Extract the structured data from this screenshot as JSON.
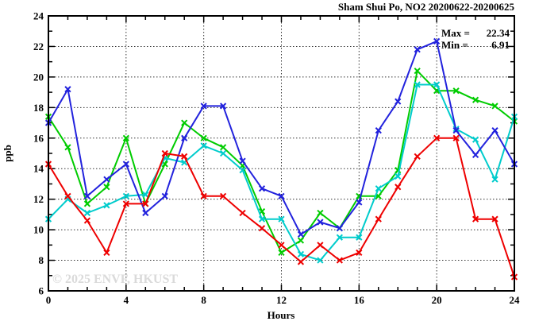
{
  "title": "Sham Shui Po, NO2 20200622-20200625",
  "watermark": "© 2025 ENVF, HKUST",
  "legend": {
    "max_label": "Max =",
    "max_value": "22.34",
    "min_label": "Min =",
    "min_value": "6.91"
  },
  "colors": {
    "axis": "#000000",
    "grid": "#333333",
    "watermark": "#dadada",
    "background": "#ffffff"
  },
  "chart_data": {
    "type": "line",
    "title": "Sham Shui Po, NO2 20200622-20200625",
    "xlabel": "Hours",
    "ylabel": "ppb",
    "xlim": [
      0,
      24
    ],
    "ylim": [
      6,
      24
    ],
    "x_major_ticks": [
      0,
      4,
      8,
      12,
      16,
      20,
      24
    ],
    "y_major_ticks": [
      6,
      8,
      10,
      12,
      14,
      16,
      18,
      20,
      22,
      24
    ],
    "x_minor_step": 1,
    "y_minor_step": 1,
    "grid": true,
    "legend_position": "top-right-inside",
    "annotations": [
      "Max = 22.34",
      "Min =  6.91"
    ],
    "x": [
      0,
      1,
      2,
      3,
      4,
      5,
      6,
      7,
      8,
      9,
      10,
      11,
      12,
      13,
      14,
      15,
      16,
      17,
      18,
      19,
      20,
      21,
      22,
      23,
      24
    ],
    "series": [
      {
        "name": "green",
        "color": "#00cc00",
        "marker": "x",
        "values": [
          17.4,
          15.4,
          11.7,
          12.8,
          16.0,
          11.7,
          14.3,
          17.0,
          16.0,
          15.4,
          14.2,
          11.2,
          8.5,
          9.3,
          11.1,
          10.1,
          12.2,
          12.2,
          13.9,
          20.4,
          19.1,
          19.1,
          18.5,
          18.1,
          17.1
        ]
      },
      {
        "name": "cyan",
        "color": "#00cccc",
        "marker": "x",
        "values": [
          10.7,
          12.0,
          11.1,
          11.6,
          12.2,
          12.3,
          14.7,
          14.4,
          15.5,
          15.0,
          13.9,
          10.7,
          10.7,
          8.4,
          8.0,
          9.5,
          9.5,
          12.7,
          13.5,
          19.5,
          19.5,
          16.6,
          15.9,
          13.3,
          17.4
        ]
      },
      {
        "name": "blue",
        "color": "#2222dd",
        "marker": "x",
        "values": [
          17.0,
          19.2,
          12.2,
          13.3,
          14.3,
          11.1,
          12.2,
          16.0,
          18.1,
          18.1,
          14.5,
          12.7,
          12.2,
          9.7,
          10.5,
          10.1,
          11.8,
          16.5,
          18.4,
          21.8,
          22.34,
          16.5,
          14.9,
          16.5,
          14.3
        ]
      },
      {
        "name": "red",
        "color": "#ee0000",
        "marker": "x",
        "values": [
          14.3,
          12.2,
          10.6,
          8.5,
          11.7,
          11.7,
          15.0,
          14.8,
          12.2,
          12.2,
          11.1,
          10.1,
          9.0,
          7.9,
          9.0,
          8.0,
          8.5,
          10.7,
          12.8,
          14.8,
          16.0,
          16.0,
          10.7,
          10.7,
          6.91
        ]
      }
    ]
  }
}
